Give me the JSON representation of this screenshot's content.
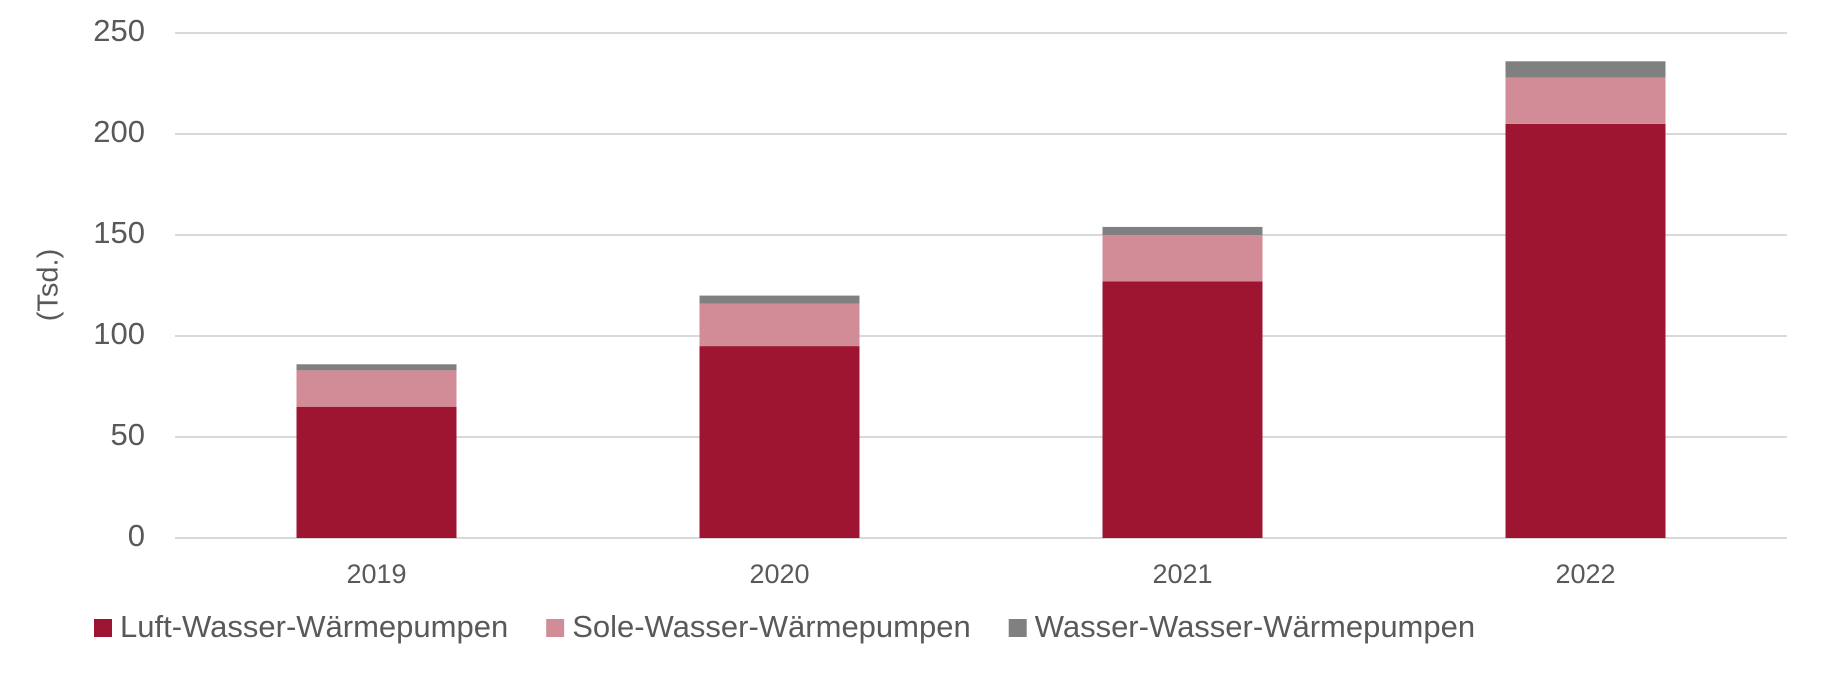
{
  "chart_data": {
    "type": "stacked_bar",
    "y_label": "(Tsd.)",
    "categories": [
      "2019",
      "2020",
      "2021",
      "2022"
    ],
    "series": [
      {
        "name": "Luft-Wasser-Wärmepumpen",
        "color": "#9d1530",
        "values": [
          65,
          95,
          127,
          205
        ]
      },
      {
        "name": "Sole-Wasser-Wärmepumpen",
        "color": "#d28c98",
        "values": [
          18,
          21,
          23,
          23
        ]
      },
      {
        "name": "Wasser-Wasser-Wärmepumpen",
        "color": "#808080",
        "values": [
          3,
          4,
          4,
          8
        ]
      }
    ],
    "ylim": [
      0,
      250
    ],
    "yticks": [
      0,
      50,
      100,
      150,
      200,
      250
    ],
    "grid": true,
    "legend": "bottom"
  }
}
